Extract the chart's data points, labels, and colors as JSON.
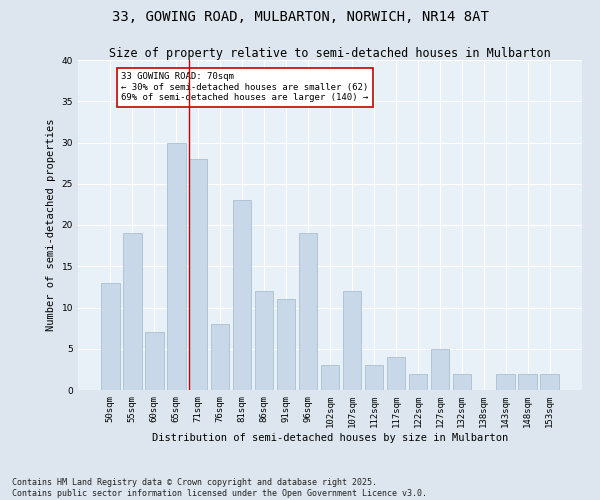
{
  "title": "33, GOWING ROAD, MULBARTON, NORWICH, NR14 8AT",
  "subtitle": "Size of property relative to semi-detached houses in Mulbarton",
  "xlabel": "Distribution of semi-detached houses by size in Mulbarton",
  "ylabel": "Number of semi-detached properties",
  "categories": [
    "50sqm",
    "55sqm",
    "60sqm",
    "65sqm",
    "71sqm",
    "76sqm",
    "81sqm",
    "86sqm",
    "91sqm",
    "96sqm",
    "102sqm",
    "107sqm",
    "112sqm",
    "117sqm",
    "122sqm",
    "127sqm",
    "132sqm",
    "138sqm",
    "143sqm",
    "148sqm",
    "153sqm"
  ],
  "values": [
    13,
    19,
    7,
    30,
    28,
    8,
    23,
    12,
    11,
    19,
    3,
    12,
    3,
    4,
    2,
    5,
    2,
    0,
    2,
    2,
    2
  ],
  "bar_color": "#c8d8e8",
  "bar_edge_color": "#a0b8cc",
  "highlight_index": 4,
  "highlight_line_color": "#cc0000",
  "annotation_text": "33 GOWING ROAD: 70sqm\n← 30% of semi-detached houses are smaller (62)\n69% of semi-detached houses are larger (140) →",
  "annotation_box_color": "#ffffff",
  "annotation_box_edge_color": "#cc0000",
  "ylim": [
    0,
    40
  ],
  "yticks": [
    0,
    5,
    10,
    15,
    20,
    25,
    30,
    35,
    40
  ],
  "footnote": "Contains HM Land Registry data © Crown copyright and database right 2025.\nContains public sector information licensed under the Open Government Licence v3.0.",
  "bg_color": "#dde6ef",
  "plot_bg_color": "#e8f0f8",
  "title_fontsize": 10,
  "subtitle_fontsize": 8.5,
  "axis_label_fontsize": 7.5,
  "tick_fontsize": 6.5,
  "footnote_fontsize": 6.0
}
